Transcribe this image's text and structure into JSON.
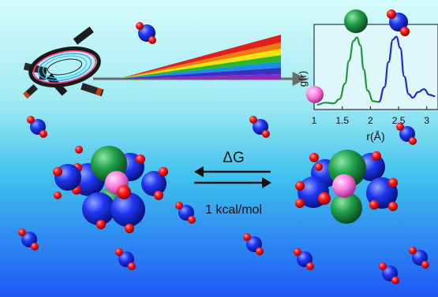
{
  "equilibrium": {
    "energy_symbol": "ΔG",
    "energy_value": "1 kcal/mol"
  },
  "colors": {
    "background_top": "#d6fbfb",
    "background_bottom": "#1f57f5",
    "water_oxygen": "#1a2bf0",
    "water_hydrogen": "#ff1010",
    "ion_magenta": "#ff7de0",
    "ligand_green": "#1e9a44",
    "curve_green": "#1a9a3a",
    "curve_blue": "#1a2bd8"
  },
  "chart_data": {
    "type": "line",
    "xlabel": "r(Å)",
    "ylabel": "g(r)",
    "x_ticks": [
      "1",
      "1.5",
      "2",
      "2.5",
      "3"
    ],
    "xlim": [
      1,
      3.2
    ],
    "series": [
      {
        "color": "green",
        "x": [
          1.05,
          1.2,
          1.35,
          1.45,
          1.55,
          1.62,
          1.7,
          1.76,
          1.82,
          1.88,
          1.95,
          2.05,
          2.15
        ],
        "y": [
          0.0,
          0.03,
          0.02,
          0.08,
          0.3,
          0.62,
          0.9,
          0.95,
          0.84,
          0.5,
          0.2,
          0.05,
          0.04
        ]
      },
      {
        "color": "blue",
        "x": [
          2.15,
          2.25,
          2.32,
          2.4,
          2.46,
          2.53,
          2.6,
          2.68,
          2.75,
          2.85,
          2.95,
          3.05,
          3.15
        ],
        "y": [
          0.04,
          0.25,
          0.6,
          0.92,
          0.96,
          0.8,
          0.4,
          0.15,
          0.1,
          0.18,
          0.22,
          0.14,
          0.12
        ]
      }
    ]
  }
}
